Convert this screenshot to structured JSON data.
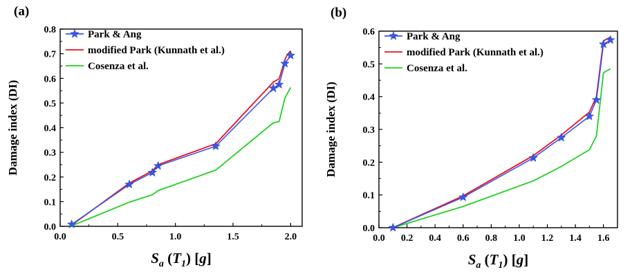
{
  "chart_data": [
    {
      "type": "line",
      "panel_label": "(a)",
      "xlabel": "S_a (T_1) [g]",
      "ylabel": "Damage index (DI)",
      "xlim": [
        0,
        2.1
      ],
      "ylim": [
        0,
        0.8
      ],
      "xticks": [
        0.0,
        0.5,
        1.0,
        1.5,
        2.0
      ],
      "xtick_labels": [
        "0.0",
        "0.5",
        "1.0",
        "1.5",
        "2.0"
      ],
      "yticks": [
        0.0,
        0.1,
        0.2,
        0.3,
        0.4,
        0.5,
        0.6,
        0.7,
        0.8
      ],
      "ytick_labels": [
        "0.0",
        "0.1",
        "0.2",
        "0.3",
        "0.4",
        "0.5",
        "0.6",
        "0.7",
        "0.8"
      ],
      "grid": false,
      "legend_position": "top-left",
      "series": [
        {
          "name": "Park & Ang",
          "color": "#3a57e8",
          "marker": "star",
          "x": [
            0.1,
            0.6,
            0.8,
            0.85,
            1.35,
            1.85,
            1.9,
            1.95,
            2.0
          ],
          "y": [
            0.008,
            0.17,
            0.218,
            0.245,
            0.325,
            0.56,
            0.575,
            0.66,
            0.693
          ]
        },
        {
          "name": "modified Park (Kunnath et al.)",
          "color": "#e8101c",
          "marker": "none",
          "x": [
            0.1,
            0.6,
            0.8,
            0.85,
            1.35,
            1.85,
            1.9,
            1.95,
            1.97,
            2.0
          ],
          "y": [
            0.005,
            0.175,
            0.225,
            0.25,
            0.335,
            0.585,
            0.598,
            0.675,
            0.695,
            0.712
          ]
        },
        {
          "name": "Cosenza et al.",
          "color": "#22d022",
          "marker": "none",
          "x": [
            0.1,
            0.6,
            0.8,
            0.85,
            1.35,
            1.85,
            1.9,
            1.95,
            2.0
          ],
          "y": [
            0.002,
            0.098,
            0.128,
            0.145,
            0.228,
            0.42,
            0.425,
            0.52,
            0.563
          ]
        }
      ]
    },
    {
      "type": "line",
      "panel_label": "(b)",
      "xlabel": "S_a (T_1) [g]",
      "ylabel": "Damage index (DI)",
      "xlim": [
        0,
        1.7
      ],
      "ylim": [
        0,
        0.6
      ],
      "xticks": [
        0.0,
        0.2,
        0.4,
        0.6,
        0.8,
        1.0,
        1.2,
        1.4,
        1.6
      ],
      "xtick_labels": [
        "0.0",
        "0.2",
        "0.4",
        "0.6",
        "0.8",
        "1.0",
        "1.2",
        "1.4",
        "1.6"
      ],
      "yticks": [
        0.0,
        0.1,
        0.2,
        0.3,
        0.4,
        0.5,
        0.6
      ],
      "ytick_labels": [
        "0.0",
        "0.1",
        "0.2",
        "0.3",
        "0.4",
        "0.5",
        "0.6"
      ],
      "grid": false,
      "legend_position": "top-left",
      "series": [
        {
          "name": "Park & Ang",
          "color": "#3a57e8",
          "marker": "star",
          "x": [
            0.1,
            0.6,
            1.1,
            1.3,
            1.5,
            1.55,
            1.6,
            1.65
          ],
          "y": [
            0.0,
            0.093,
            0.213,
            0.275,
            0.34,
            0.39,
            0.56,
            0.573
          ]
        },
        {
          "name": "modified Park (Kunnath et al.)",
          "color": "#e8101c",
          "marker": "none",
          "x": [
            0.1,
            0.6,
            1.1,
            1.3,
            1.5,
            1.55,
            1.6,
            1.62,
            1.65
          ],
          "y": [
            0.0,
            0.097,
            0.22,
            0.283,
            0.353,
            0.4,
            0.57,
            0.575,
            0.582
          ]
        },
        {
          "name": "Cosenza et al.",
          "color": "#22d022",
          "marker": "none",
          "x": [
            0.1,
            0.6,
            1.1,
            1.3,
            1.5,
            1.55,
            1.6,
            1.65
          ],
          "y": [
            0.0,
            0.065,
            0.143,
            0.187,
            0.238,
            0.28,
            0.473,
            0.485
          ]
        }
      ]
    }
  ]
}
